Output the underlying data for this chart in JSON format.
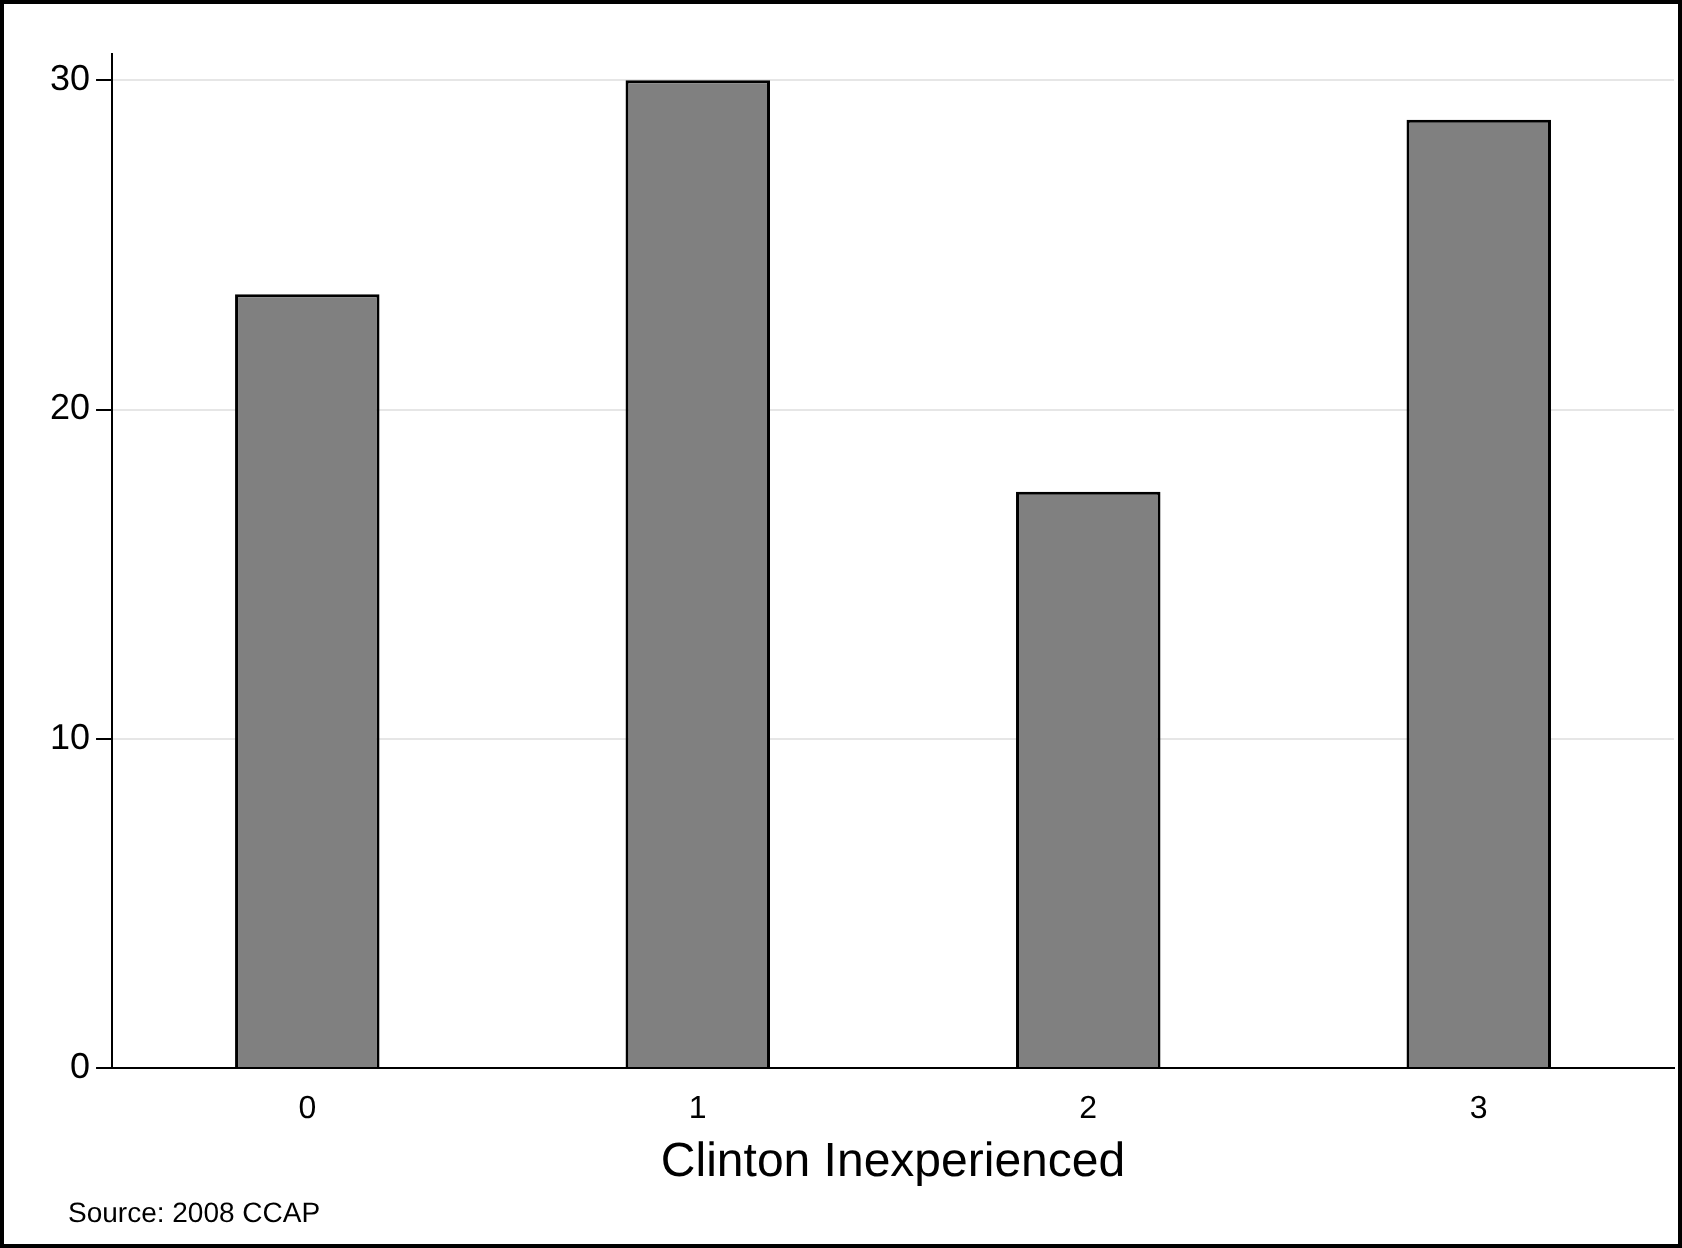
{
  "chart_data": {
    "type": "bar",
    "xlabel": "Clinton Inexperienced",
    "categories": [
      "0",
      "1",
      "2",
      "3"
    ],
    "values": [
      23.5,
      30.0,
      17.5,
      28.8
    ],
    "color": "#808080",
    "ylim": [
      0,
      30.8
    ],
    "yticks": [
      0,
      10,
      20,
      30
    ],
    "grid": "y",
    "legend": false,
    "annotations": [
      "Source: 2008 CCAP"
    ]
  }
}
